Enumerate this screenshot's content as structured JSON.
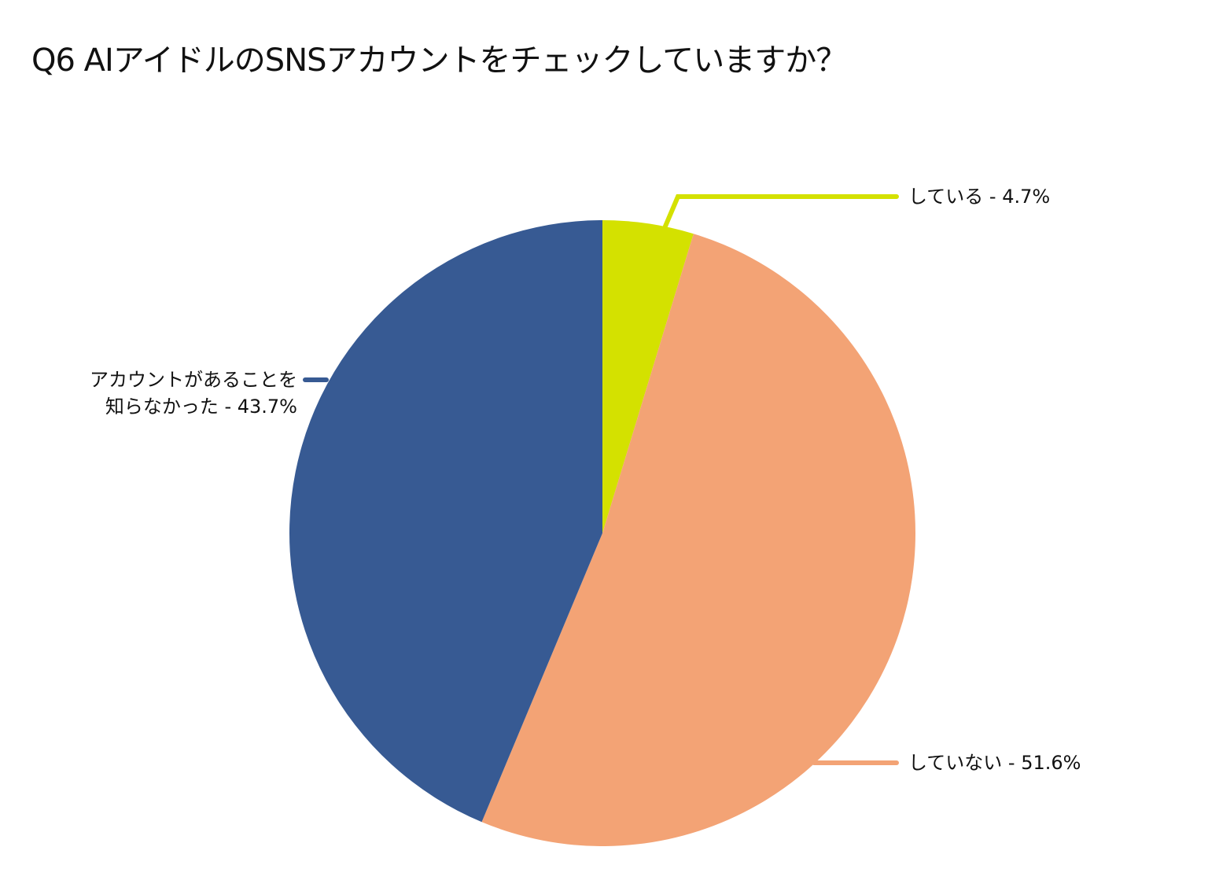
{
  "chart_data": {
    "type": "pie",
    "title": "Q6 AIアイドルのSNSアカウントをチェックしていますか？",
    "start_angle_deg": 0,
    "direction": "clockwise",
    "slices": [
      {
        "label": "している",
        "value": 4.7,
        "color": "#d4e100"
      },
      {
        "label": "していない",
        "value": 51.6,
        "color": "#f3a375"
      },
      {
        "label": "アカウントがあることを知らなかった",
        "value": 43.7,
        "color": "#375a93"
      }
    ],
    "label_format": "{label} - {value}%",
    "legend": "none"
  }
}
